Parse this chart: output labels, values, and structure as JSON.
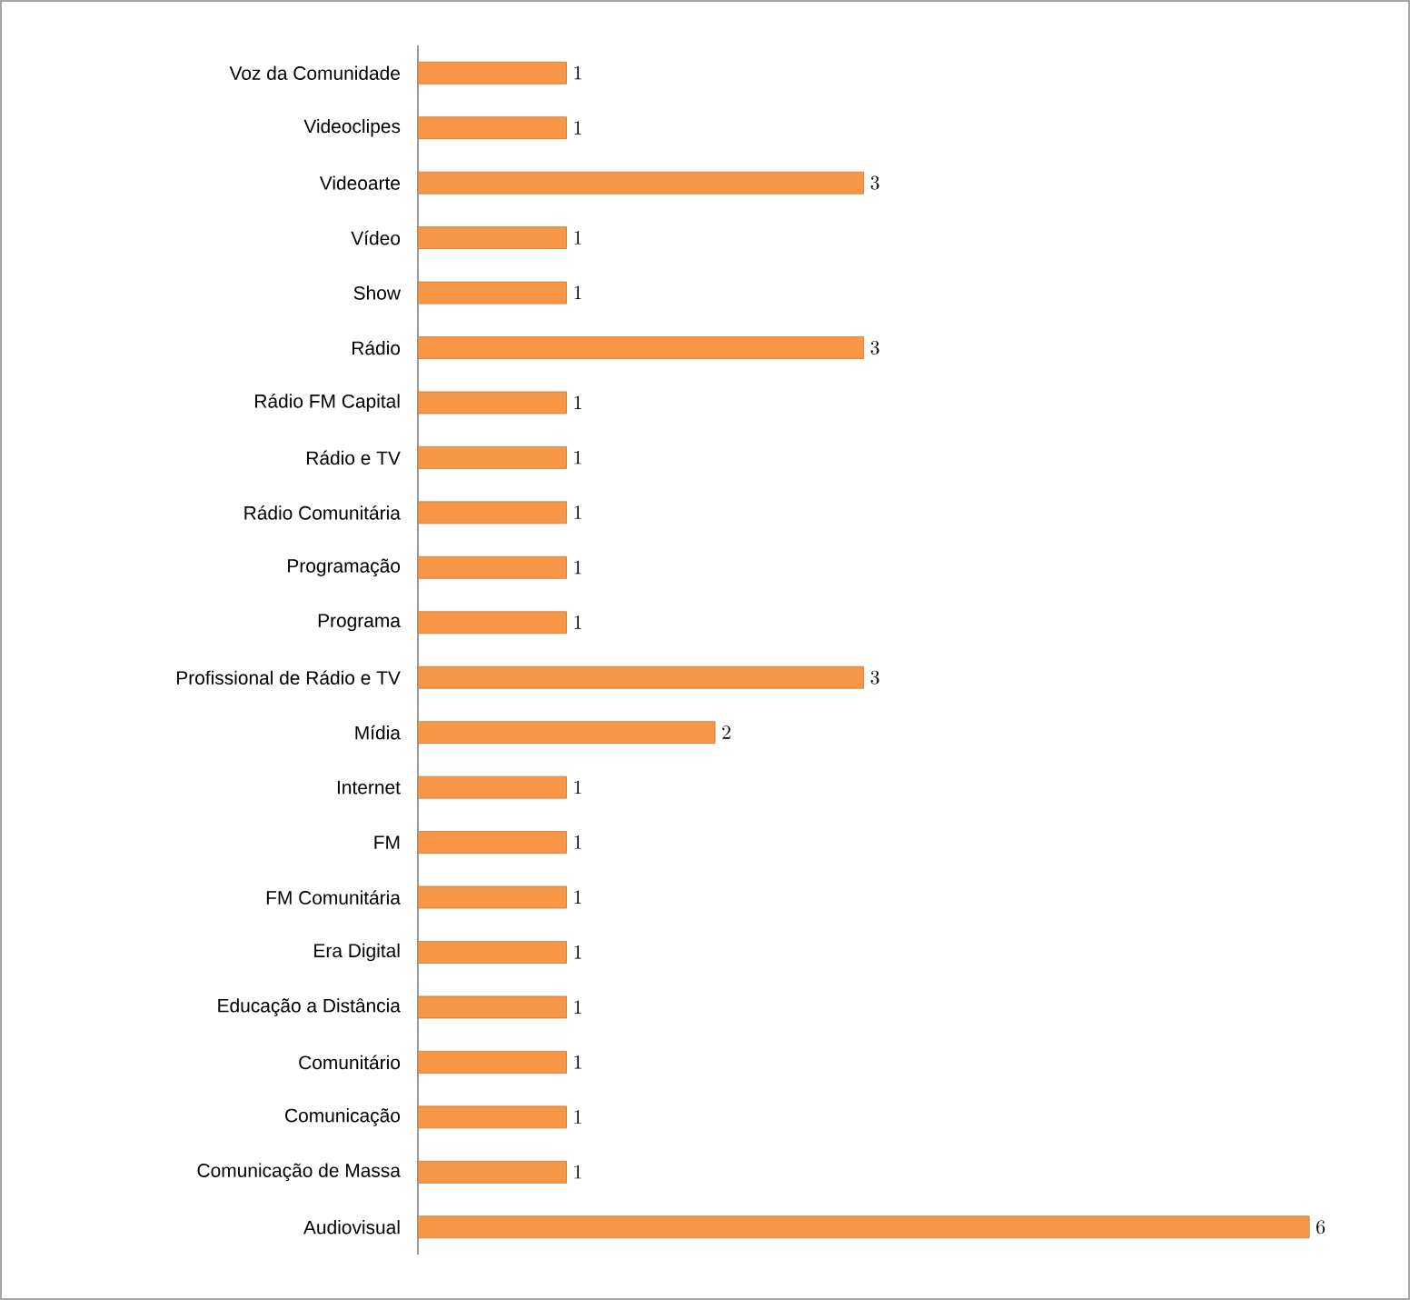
{
  "chart_data": {
    "type": "bar",
    "orientation": "horizontal",
    "data_labels": true,
    "color": "#f79646",
    "categories": [
      "Voz da Comunidade",
      "Videoclipes",
      "Videoarte",
      "Vídeo",
      "Show",
      "Rádio",
      "Rádio FM Capital",
      "Rádio e TV",
      "Rádio Comunitária",
      "Programação",
      "Programa",
      "Profissional de Rádio e TV",
      "Mídia",
      "Internet",
      "FM",
      "FM Comunitária",
      "Era Digital",
      "Educação a Distância",
      "Comunitário",
      "Comunicação",
      "Comunicação de Massa",
      "Audiovisual"
    ],
    "values": [
      1,
      1,
      3,
      1,
      1,
      3,
      1,
      1,
      1,
      1,
      1,
      3,
      2,
      1,
      1,
      1,
      1,
      1,
      1,
      1,
      1,
      6
    ]
  }
}
